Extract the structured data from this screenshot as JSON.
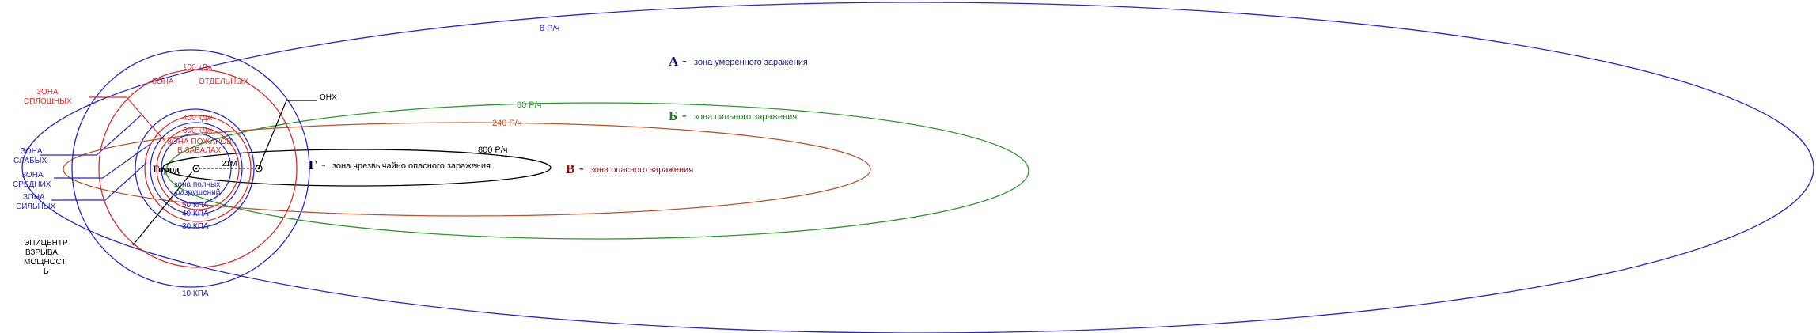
{
  "colors": {
    "blue": "#2828c8",
    "red": "#d83030",
    "green": "#2a9a2a",
    "brown": "#b8542a",
    "black": "#000000",
    "navy": "#1a1a8c",
    "darkgreen": "#1d7a1d",
    "darkred": "#8c1414"
  },
  "zones": {
    "a": {
      "letter": "А",
      "dash": "-",
      "desc": "зона умеренного заражения"
    },
    "b": {
      "letter": "Б",
      "dash": "-",
      "desc": "зона сильного заражения"
    },
    "v": {
      "letter": "В",
      "dash": "-",
      "desc": "зона опасного заражения"
    },
    "g": {
      "letter": "Г",
      "dash": "-",
      "desc": "зона чрезвычайно опасного заражения"
    }
  },
  "radiation": {
    "r8": "8 Р/ч",
    "r80": "80 Р/ч",
    "r240": "240 Р/ч",
    "r800": "800 Р/ч"
  },
  "circles": {
    "kpa10": "10 КПА",
    "kpa30": "30 КПА",
    "kpa40": "40 КПА",
    "kpa50": "50 КПА",
    "kdj100": "100 кДж",
    "kdj400": "400 кДж",
    "kdj600": "600 кДж"
  },
  "labels": {
    "zone_otd_1": "ЗОНА",
    "zone_otd_2": "ОТДЕЛЬНЫХ",
    "zone_spl_1": "ЗОНА",
    "zone_spl_2": "СПЛОШНЫХ",
    "zone_slab_1": "ЗОНА",
    "zone_slab_2": "СЛАБЫХ",
    "zone_sred_1": "ЗОНА",
    "zone_sred_2": "СРЕДНИХ",
    "zone_silno_1": "ЗОНА",
    "zone_silno_2": "СИЛЬНЫХ",
    "fires_1": "ЗОНА ПОЖАРОВ",
    "fires_2": "В ЗАВАЛАХ",
    "full_1": "зона полных",
    "full_2": "разрушений",
    "city": "Город",
    "dist": "21М",
    "onh": "ОНХ",
    "epi_1": "ЭПИЦЕНТР",
    "epi_2": "ВЗРЫВА,",
    "epi_3": "МОЩНОСТ",
    "epi_4": "Ь"
  }
}
